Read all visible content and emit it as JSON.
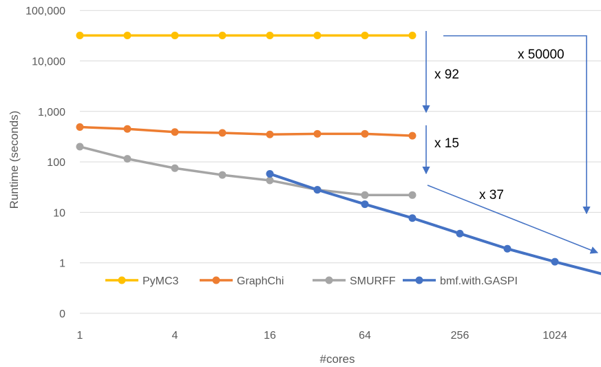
{
  "chart_data": {
    "type": "line",
    "xlabel": "#cores",
    "ylabel": "Runtime  (seconds)",
    "x_scale": "log2",
    "y_scale": "log10",
    "x_ticks": [
      {
        "value": 1,
        "label": "1"
      },
      {
        "value": 4,
        "label": "4"
      },
      {
        "value": 16,
        "label": "16"
      },
      {
        "value": 64,
        "label": "64"
      },
      {
        "value": 256,
        "label": "256"
      },
      {
        "value": 1024,
        "label": "1024"
      }
    ],
    "y_ticks": [
      {
        "value": 0.1,
        "label": "0"
      },
      {
        "value": 1,
        "label": "1"
      },
      {
        "value": 10,
        "label": "10"
      },
      {
        "value": 100,
        "label": "100"
      },
      {
        "value": 1000,
        "label": "1,000"
      },
      {
        "value": 10000,
        "label": "10,000"
      },
      {
        "value": 100000,
        "label": "100,000"
      }
    ],
    "xlim": [
      1,
      2048
    ],
    "ylim": [
      0.1,
      100000
    ],
    "grid": true,
    "legend_position": "bottom",
    "series": [
      {
        "name": "PyMC3",
        "color": "#FFC000",
        "x": [
          1,
          2,
          4,
          8,
          16,
          32,
          64,
          128
        ],
        "y": [
          32000,
          32000,
          32000,
          32000,
          32000,
          32000,
          32000,
          32000
        ]
      },
      {
        "name": "GraphChi",
        "color": "#ED7D31",
        "x": [
          1,
          2,
          4,
          8,
          16,
          32,
          64,
          128
        ],
        "y": [
          490,
          450,
          390,
          375,
          350,
          360,
          360,
          330
        ]
      },
      {
        "name": "SMURFF",
        "color": "#A5A5A5",
        "x": [
          1,
          2,
          4,
          8,
          16,
          32,
          64,
          128
        ],
        "y": [
          200,
          115,
          75,
          55,
          43,
          28,
          22,
          22
        ]
      },
      {
        "name": "bmf.with.GASPI",
        "color": "#4472C4",
        "x": [
          16,
          32,
          64,
          128,
          256,
          512,
          1024,
          2048
        ],
        "y": [
          58,
          28,
          14.5,
          7.7,
          3.8,
          1.9,
          1.05,
          0.6
        ]
      }
    ],
    "annotations": [
      {
        "text": "x 92",
        "color": "#4472C4"
      },
      {
        "text": "x 15",
        "color": "#4472C4"
      },
      {
        "text": "x 37",
        "color": "#4472C4"
      },
      {
        "text": "x 50000",
        "color": "#4472C4"
      }
    ]
  }
}
